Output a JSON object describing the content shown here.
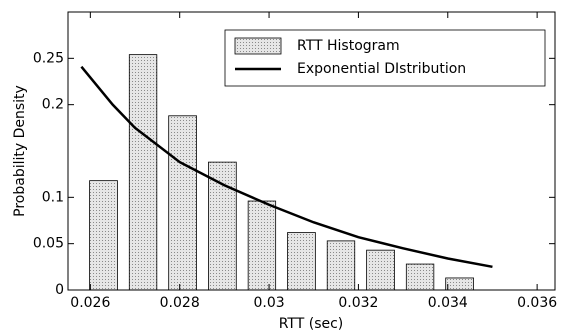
{
  "chart_data": {
    "type": "histogram",
    "xlabel": "RTT (sec)",
    "ylabel": "Probability Density",
    "xlim": [
      0.0255,
      0.0364
    ],
    "xticks": [
      0.026,
      0.028,
      0.03,
      0.032,
      0.034,
      0.036
    ],
    "ylim": [
      0,
      0.3
    ],
    "yticks": [
      0,
      0.05,
      0.1,
      0.2,
      0.25
    ],
    "legend": "upper right",
    "rwidth": 0.7,
    "series": [
      {
        "name": "RTT Histogram",
        "type": "histogram",
        "color": "#d4d4d4",
        "bins": [
          0.02585,
          0.02674,
          0.02762,
          0.02851,
          0.0294,
          0.03028,
          0.03117,
          0.03205,
          0.03294,
          0.03382,
          0.03471
        ],
        "values": [
          0.118,
          0.254,
          0.188,
          0.138,
          0.096,
          0.062,
          0.053,
          0.043,
          0.028,
          0.013
        ]
      },
      {
        "name": "Exponential DIstribution",
        "type": "line",
        "color": "#000000",
        "x": [
          0.0258,
          0.0265,
          0.027,
          0.028,
          0.029,
          0.03,
          0.031,
          0.032,
          0.033,
          0.034,
          0.035
        ],
        "values": [
          0.241,
          0.2,
          0.175,
          0.138,
          0.113,
          0.092,
          0.073,
          0.057,
          0.045,
          0.034,
          0.025
        ]
      }
    ]
  }
}
